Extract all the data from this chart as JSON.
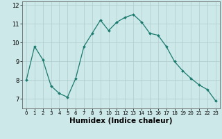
{
  "x": [
    0,
    1,
    2,
    3,
    4,
    5,
    6,
    7,
    8,
    9,
    10,
    11,
    12,
    13,
    14,
    15,
    16,
    17,
    18,
    19,
    20,
    21,
    22,
    23
  ],
  "y": [
    8.0,
    9.8,
    9.1,
    7.7,
    7.3,
    7.1,
    8.1,
    9.8,
    10.5,
    11.2,
    10.65,
    11.1,
    11.35,
    11.5,
    11.1,
    10.5,
    10.4,
    9.8,
    9.0,
    8.5,
    8.1,
    7.75,
    7.5,
    6.9
  ],
  "line_color": "#1a7a6e",
  "marker_color": "#1a7a6e",
  "bg_color": "#cce8e8",
  "grid_color_major": "#b0cccc",
  "xlabel": "Humidex (Indice chaleur)",
  "xlabel_fontsize": 7.5,
  "xlim": [
    -0.5,
    23.5
  ],
  "ylim": [
    6.5,
    12.2
  ],
  "yticks": [
    7,
    8,
    9,
    10,
    11,
    12
  ],
  "xticks": [
    0,
    1,
    2,
    3,
    4,
    5,
    6,
    7,
    8,
    9,
    10,
    11,
    12,
    13,
    14,
    15,
    16,
    17,
    18,
    19,
    20,
    21,
    22,
    23
  ]
}
